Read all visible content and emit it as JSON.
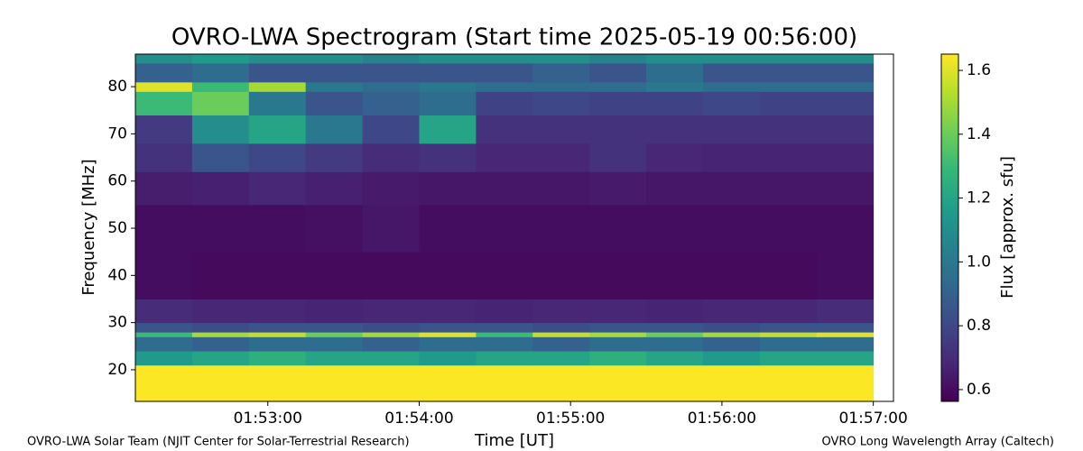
{
  "chart_data": {
    "type": "heatmap",
    "title": "OVRO-LWA Spectrogram (Start time 2025-05-19 00:56:00)",
    "x_label": "Time [UT]",
    "y_label": "Frequency [MHz]",
    "colorbar_label": "Flux [approx. sfu]",
    "colormap": "viridis",
    "annotations": [
      "OVRO-LWA Solar Team (NJIT Center for Solar-Terrestrial Research)",
      "OVRO Long Wavelength Array (Caltech)"
    ],
    "xlim": [
      6727.5,
      7028
    ],
    "xticks": [
      {
        "value": 6780,
        "label": "01:53:00"
      },
      {
        "value": 6840,
        "label": "01:54:00"
      },
      {
        "value": 6900,
        "label": "01:55:00"
      },
      {
        "value": 6960,
        "label": "01:56:00"
      },
      {
        "value": 7020,
        "label": "01:57:00"
      }
    ],
    "ylim": [
      13.3,
      86.9
    ],
    "yticks": [
      20,
      30,
      40,
      50,
      60,
      70,
      80
    ],
    "clim": [
      0.563,
      1.651
    ],
    "cticks": [
      0.6,
      0.8,
      {
        "value": 1,
        "label": "1.0"
      },
      1.2,
      1.4,
      1.6
    ],
    "x_edges": [
      6727.5,
      6750,
      6772.5,
      6795,
      6817.5,
      6840,
      6862.5,
      6885,
      6907.5,
      6930,
      6952.5,
      6975,
      6997.5,
      7020
    ],
    "y_edges": [
      13.3,
      21,
      24,
      27,
      28,
      30,
      35,
      45,
      55,
      62,
      68,
      74,
      79,
      81,
      85,
      86.9
    ],
    "values": [
      [
        1.65,
        1.65,
        1.65,
        1.65,
        1.65,
        1.65,
        1.65,
        1.65,
        1.65,
        1.65,
        1.65,
        1.65,
        1.65
      ],
      [
        1.15,
        1.2,
        1.25,
        1.2,
        1.2,
        1.15,
        1.2,
        1.2,
        1.25,
        1.2,
        1.15,
        1.2,
        1.2
      ],
      [
        0.95,
        0.9,
        0.95,
        0.95,
        0.9,
        0.95,
        0.95,
        0.9,
        0.95,
        0.95,
        0.9,
        0.95,
        0.95
      ],
      [
        1.3,
        1.5,
        1.55,
        1.4,
        1.5,
        1.6,
        1.3,
        1.55,
        1.5,
        1.4,
        1.5,
        1.55,
        1.6
      ],
      [
        0.85,
        0.82,
        0.85,
        0.85,
        0.82,
        0.85,
        0.85,
        0.82,
        0.85,
        0.85,
        0.82,
        0.85,
        0.85
      ],
      [
        0.7,
        0.68,
        0.68,
        0.67,
        0.68,
        0.68,
        0.67,
        0.68,
        0.68,
        0.67,
        0.68,
        0.68,
        0.7
      ],
      [
        0.6,
        0.59,
        0.59,
        0.59,
        0.59,
        0.59,
        0.59,
        0.59,
        0.59,
        0.59,
        0.59,
        0.59,
        0.6
      ],
      [
        0.6,
        0.6,
        0.6,
        0.61,
        0.63,
        0.6,
        0.6,
        0.6,
        0.6,
        0.6,
        0.6,
        0.6,
        0.6
      ],
      [
        0.65,
        0.66,
        0.68,
        0.66,
        0.64,
        0.63,
        0.63,
        0.63,
        0.64,
        0.63,
        0.63,
        0.63,
        0.63
      ],
      [
        0.72,
        0.85,
        0.8,
        0.75,
        0.7,
        0.72,
        0.68,
        0.68,
        0.72,
        0.68,
        0.67,
        0.67,
        0.67
      ],
      [
        0.75,
        1.1,
        1.2,
        1.0,
        0.8,
        1.2,
        0.72,
        0.72,
        0.72,
        0.72,
        0.72,
        0.72,
        0.72
      ],
      [
        1.3,
        1.4,
        1.0,
        0.85,
        0.9,
        0.95,
        0.78,
        0.8,
        0.78,
        0.78,
        0.8,
        0.78,
        0.78
      ],
      [
        1.6,
        1.3,
        1.5,
        1.0,
        0.95,
        1.0,
        0.95,
        0.95,
        0.95,
        1.0,
        0.95,
        0.95,
        0.95
      ],
      [
        0.9,
        0.95,
        0.85,
        0.85,
        0.85,
        0.85,
        0.85,
        0.9,
        0.85,
        0.95,
        0.85,
        0.85,
        0.85
      ],
      [
        1.1,
        1.15,
        1.1,
        1.1,
        1.05,
        1.1,
        1.1,
        1.1,
        1.05,
        1.1,
        1.1,
        1.1,
        1.1
      ]
    ]
  }
}
